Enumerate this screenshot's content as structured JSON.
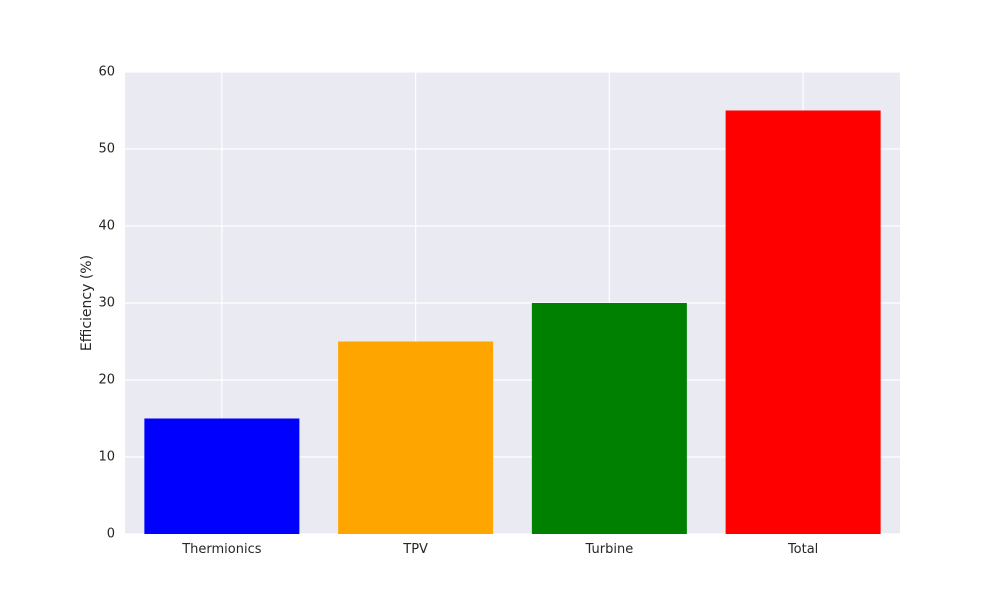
{
  "chart_data": {
    "type": "bar",
    "title": "",
    "xlabel": "",
    "ylabel": "Efficiency (%)",
    "categories": [
      "Thermionics",
      "TPV",
      "Turbine",
      "Total"
    ],
    "values": [
      15,
      25,
      30,
      55
    ],
    "colors": [
      "#0000ff",
      "#ffa500",
      "#008000",
      "#ff0000"
    ],
    "ylim": [
      0,
      60
    ],
    "yticks": [
      0,
      10,
      20,
      30,
      40,
      50,
      60
    ],
    "grid": true,
    "legend": "none",
    "style": {
      "plot_background": "#eaeaf2",
      "grid_color": "#ffffff",
      "text_color": "#262626"
    }
  }
}
